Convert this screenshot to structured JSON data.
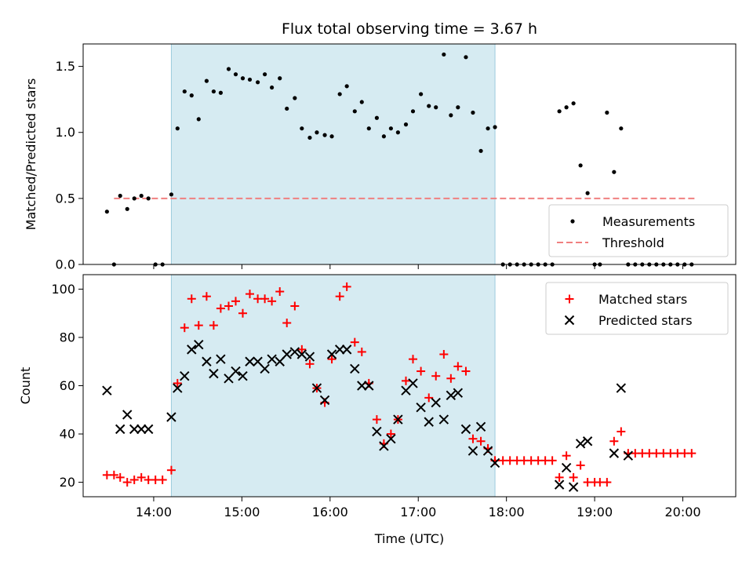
{
  "chart_data": [
    {
      "type": "scatter",
      "title": "Flux total observing time = 3.67 h",
      "xlabel": "",
      "ylabel": "Matched/Predicted stars",
      "xlim": [
        13.2,
        20.6
      ],
      "ylim": [
        0,
        1.67
      ],
      "yticks": [
        0.0,
        0.5,
        1.0,
        1.5
      ],
      "ytick_labels": [
        "0.0",
        "0.5",
        "1.0",
        "1.5"
      ],
      "xticks": [
        14,
        15,
        16,
        17,
        18,
        19,
        20
      ],
      "grid": false,
      "legend": "bottom-right",
      "shaded_region": {
        "x_start": 14.2,
        "x_end": 17.87,
        "color": "#add8e6"
      },
      "threshold": {
        "name": "Threshold",
        "value": 0.5,
        "x_start": 13.55,
        "x_end": 20.15,
        "color": "#f08080"
      },
      "series": [
        {
          "name": "Measurements",
          "marker": "dot",
          "color": "#000000",
          "x": [
            13.47,
            13.55,
            13.62,
            13.7,
            13.78,
            13.86,
            13.94,
            14.02,
            14.1,
            14.2,
            14.27,
            14.35,
            14.43,
            14.51,
            14.6,
            14.68,
            14.76,
            14.85,
            14.93,
            15.01,
            15.09,
            15.18,
            15.26,
            15.34,
            15.43,
            15.51,
            15.6,
            15.68,
            15.77,
            15.85,
            15.94,
            16.02,
            16.11,
            16.19,
            16.28,
            16.36,
            16.44,
            16.53,
            16.61,
            16.69,
            16.77,
            16.86,
            16.94,
            17.03,
            17.12,
            17.2,
            17.29,
            17.37,
            17.45,
            17.54,
            17.62,
            17.71,
            17.79,
            17.87,
            17.96,
            18.04,
            18.12,
            18.2,
            18.28,
            18.36,
            18.44,
            18.52,
            18.6,
            18.68,
            18.76,
            18.84,
            18.92,
            19.0,
            19.06,
            19.14,
            19.22,
            19.3,
            19.38,
            19.46,
            19.54,
            19.62,
            19.7,
            19.78,
            19.86,
            19.94,
            20.02,
            20.1
          ],
          "y": [
            0.4,
            0.0,
            0.52,
            0.42,
            0.5,
            0.52,
            0.5,
            0.0,
            0.0,
            0.53,
            1.03,
            1.31,
            1.28,
            1.1,
            1.39,
            1.31,
            1.3,
            1.48,
            1.44,
            1.41,
            1.4,
            1.38,
            1.44,
            1.34,
            1.41,
            1.18,
            1.26,
            1.03,
            0.96,
            1.0,
            0.98,
            0.97,
            1.29,
            1.35,
            1.16,
            1.23,
            1.03,
            1.11,
            0.97,
            1.03,
            1.0,
            1.06,
            1.16,
            1.29,
            1.2,
            1.19,
            1.59,
            1.13,
            1.19,
            1.57,
            1.15,
            0.86,
            1.03,
            1.04,
            0.0,
            0.0,
            0.0,
            0.0,
            0.0,
            0.0,
            0.0,
            0.0,
            1.16,
            1.19,
            1.22,
            0.75,
            0.54,
            0.0,
            0.0,
            1.15,
            0.7,
            1.03,
            0.0,
            0.0,
            0.0,
            0.0,
            0.0,
            0.0,
            0.0,
            0.0,
            0.0,
            0.0
          ]
        },
        {
          "name": "Threshold",
          "marker": "dashed-line",
          "color": "#f08080",
          "x": [
            13.55,
            20.15
          ],
          "y": [
            0.5,
            0.5
          ]
        }
      ]
    },
    {
      "type": "scatter",
      "title": "",
      "xlabel": "Time (UTC)",
      "ylabel": "Count",
      "xlim": [
        13.2,
        20.6
      ],
      "ylim": [
        14,
        106
      ],
      "yticks": [
        20,
        40,
        60,
        80,
        100
      ],
      "ytick_labels": [
        "20",
        "40",
        "60",
        "80",
        "100"
      ],
      "xticks": [
        14,
        15,
        16,
        17,
        18,
        19,
        20
      ],
      "xtick_labels": [
        "14:00",
        "15:00",
        "16:00",
        "17:00",
        "18:00",
        "19:00",
        "20:00"
      ],
      "grid": false,
      "legend": "top-right",
      "shaded_region": {
        "x_start": 14.2,
        "x_end": 17.87,
        "color": "#add8e6"
      },
      "series": [
        {
          "name": "Matched stars",
          "marker": "plus",
          "color": "#ff0000",
          "x": [
            13.47,
            13.55,
            13.62,
            13.7,
            13.78,
            13.86,
            13.94,
            14.02,
            14.1,
            14.2,
            14.27,
            14.35,
            14.43,
            14.51,
            14.6,
            14.68,
            14.76,
            14.85,
            14.93,
            15.01,
            15.09,
            15.18,
            15.26,
            15.34,
            15.43,
            15.51,
            15.6,
            15.68,
            15.77,
            15.85,
            15.94,
            16.02,
            16.11,
            16.19,
            16.28,
            16.36,
            16.44,
            16.53,
            16.61,
            16.69,
            16.77,
            16.86,
            16.94,
            17.03,
            17.12,
            17.2,
            17.29,
            17.37,
            17.45,
            17.54,
            17.62,
            17.71,
            17.79,
            17.87,
            17.96,
            18.04,
            18.12,
            18.2,
            18.28,
            18.36,
            18.44,
            18.52,
            18.6,
            18.68,
            18.76,
            18.84,
            18.92,
            19.0,
            19.06,
            19.14,
            19.22,
            19.3,
            19.38,
            19.46,
            19.54,
            19.62,
            19.7,
            19.78,
            19.86,
            19.94,
            20.02,
            20.1
          ],
          "y": [
            23,
            23,
            22,
            20,
            21,
            22,
            21,
            21,
            21,
            25,
            61,
            84,
            96,
            85,
            97,
            85,
            92,
            93,
            95,
            90,
            98,
            96,
            96,
            95,
            99,
            86,
            93,
            75,
            69,
            59,
            53,
            71,
            97,
            101,
            78,
            74,
            61,
            46,
            36,
            40,
            46,
            62,
            71,
            66,
            55,
            64,
            73,
            63,
            68,
            66,
            38,
            37,
            34,
            29,
            29,
            29,
            29,
            29,
            29,
            29,
            29,
            29,
            22,
            31,
            22,
            27,
            20,
            20,
            20,
            20,
            37,
            41,
            32,
            32,
            32,
            32,
            32,
            32,
            32,
            32,
            32,
            32
          ]
        },
        {
          "name": "Predicted stars",
          "marker": "x",
          "color": "#000000",
          "x": [
            13.47,
            13.62,
            13.7,
            13.78,
            13.86,
            13.94,
            14.2,
            14.27,
            14.35,
            14.43,
            14.51,
            14.6,
            14.68,
            14.76,
            14.85,
            14.93,
            15.01,
            15.09,
            15.18,
            15.26,
            15.34,
            15.43,
            15.51,
            15.6,
            15.68,
            15.77,
            15.85,
            15.94,
            16.02,
            16.11,
            16.19,
            16.28,
            16.36,
            16.44,
            16.53,
            16.61,
            16.69,
            16.77,
            16.86,
            16.94,
            17.03,
            17.12,
            17.2,
            17.29,
            17.37,
            17.45,
            17.54,
            17.62,
            17.71,
            17.79,
            17.87,
            18.6,
            18.68,
            18.76,
            18.84,
            18.92,
            19.22,
            19.3,
            19.38
          ],
          "y": [
            58,
            42,
            48,
            42,
            42,
            42,
            47,
            59,
            64,
            75,
            77,
            70,
            65,
            71,
            63,
            66,
            64,
            70,
            70,
            67,
            71,
            70,
            73,
            74,
            73,
            72,
            59,
            54,
            73,
            75,
            75,
            67,
            60,
            60,
            41,
            35,
            38,
            46,
            58,
            61,
            51,
            45,
            53,
            46,
            56,
            57,
            42,
            33,
            43,
            33,
            28,
            19,
            26,
            18,
            36,
            37,
            32,
            59,
            31
          ]
        }
      ]
    }
  ]
}
